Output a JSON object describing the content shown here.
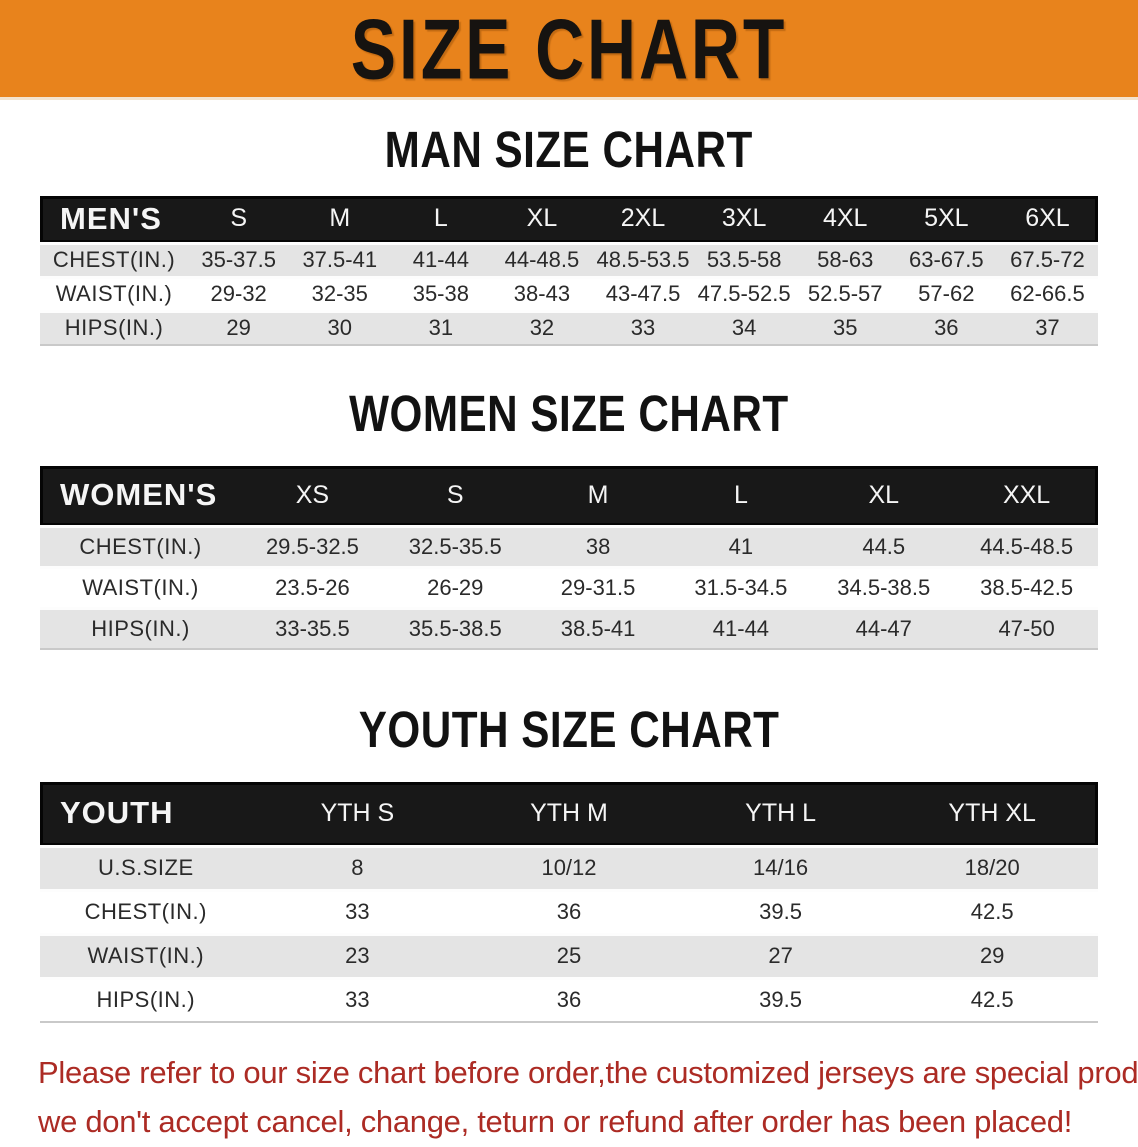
{
  "banner": {
    "title": "SIZE CHART",
    "bg_color": "#E8831C",
    "text_color": "#161310"
  },
  "sections": [
    {
      "heading": "MAN SIZE CHART",
      "table": {
        "header_label": "MEN'S",
        "sizes": [
          "S",
          "M",
          "L",
          "XL",
          "2XL",
          "3XL",
          "4XL",
          "5XL",
          "6XL"
        ],
        "rows": [
          {
            "label": "CHEST(IN.)",
            "values": [
              "35-37.5",
              "37.5-41",
              "41-44",
              "44-48.5",
              "48.5-53.5",
              "53.5-58",
              "58-63",
              "63-67.5",
              "67.5-72"
            ]
          },
          {
            "label": "WAIST(IN.)",
            "values": [
              "29-32",
              "32-35",
              "35-38",
              "38-43",
              "43-47.5",
              "47.5-52.5",
              "52.5-57",
              "57-62",
              "62-66.5"
            ]
          },
          {
            "label": "HIPS(IN.)",
            "values": [
              "29",
              "30",
              "31",
              "32",
              "33",
              "34",
              "35",
              "36",
              "37"
            ]
          }
        ]
      }
    },
    {
      "heading": "WOMEN SIZE CHART",
      "table": {
        "header_label": "WOMEN'S",
        "sizes": [
          "XS",
          "S",
          "M",
          "L",
          "XL",
          "XXL"
        ],
        "rows": [
          {
            "label": "CHEST(IN.)",
            "values": [
              "29.5-32.5",
              "32.5-35.5",
              "38",
              "41",
              "44.5",
              "44.5-48.5"
            ]
          },
          {
            "label": "WAIST(IN.)",
            "values": [
              "23.5-26",
              "26-29",
              "29-31.5",
              "31.5-34.5",
              "34.5-38.5",
              "38.5-42.5"
            ]
          },
          {
            "label": "HIPS(IN.)",
            "values": [
              "33-35.5",
              "35.5-38.5",
              "38.5-41",
              "41-44",
              "44-47",
              "47-50"
            ]
          }
        ]
      }
    },
    {
      "heading": "YOUTH SIZE CHART",
      "table": {
        "header_label": "YOUTH",
        "sizes": [
          "YTH S",
          "YTH M",
          "YTH L",
          "YTH XL"
        ],
        "rows": [
          {
            "label": "U.S.SIZE",
            "values": [
              "8",
              "10/12",
              "14/16",
              "18/20"
            ]
          },
          {
            "label": "CHEST(IN.)",
            "values": [
              "33",
              "36",
              "39.5",
              "42.5"
            ]
          },
          {
            "label": "WAIST(IN.)",
            "values": [
              "23",
              "25",
              "27",
              "29"
            ]
          },
          {
            "label": "HIPS(IN.)",
            "values": [
              "33",
              "36",
              "39.5",
              "42.5"
            ]
          }
        ]
      }
    }
  ],
  "disclaimer": {
    "line1": "Please refer to our size chart before order,the customized jerseys are special products,",
    "line2": "we don't accept cancel, change, teturn or refund after order has been placed!",
    "text_color": "#AC2B24"
  }
}
